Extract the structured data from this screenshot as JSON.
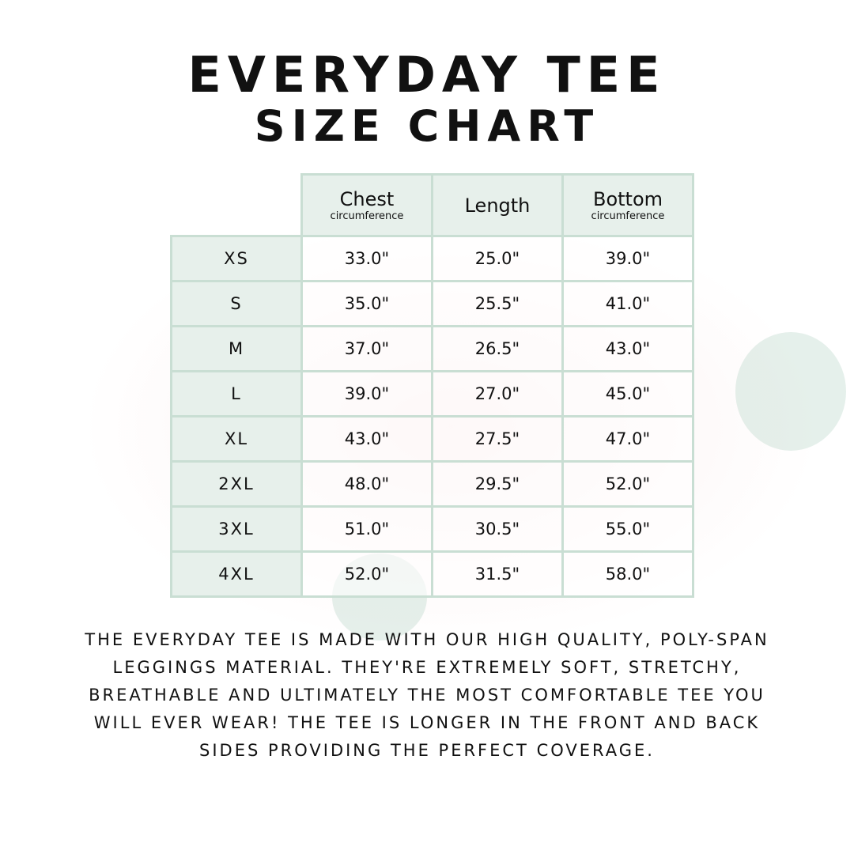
{
  "title": "EVERYDAY TEE",
  "subtitle": "SIZE CHART",
  "columns": [
    {
      "main": "Chest",
      "sub": "circumference"
    },
    {
      "main": "Length",
      "sub": ""
    },
    {
      "main": "Bottom",
      "sub": "circumference"
    }
  ],
  "rows": [
    {
      "size": "XS",
      "chest": "33.0\"",
      "length": "25.0\"",
      "bottom": "39.0\""
    },
    {
      "size": "S",
      "chest": "35.0\"",
      "length": "25.5\"",
      "bottom": "41.0\""
    },
    {
      "size": "M",
      "chest": "37.0\"",
      "length": "26.5\"",
      "bottom": "43.0\""
    },
    {
      "size": "L",
      "chest": "39.0\"",
      "length": "27.0\"",
      "bottom": "45.0\""
    },
    {
      "size": "XL",
      "chest": "43.0\"",
      "length": "27.5\"",
      "bottom": "47.0\""
    },
    {
      "size": "2XL",
      "chest": "48.0\"",
      "length": "29.5\"",
      "bottom": "52.0\""
    },
    {
      "size": "3XL",
      "chest": "51.0\"",
      "length": "30.5\"",
      "bottom": "55.0\""
    },
    {
      "size": "4XL",
      "chest": "52.0\"",
      "length": "31.5\"",
      "bottom": "58.0\""
    }
  ],
  "description": "The Everyday Tee is made with our high quality, poly-span leggings material. They're extremely soft, stretchy, breathable and ultimately the most comfortable tee you will ever wear! The tee is longer in the front and back sides providing the perfect coverage.",
  "colors": {
    "header_bg": "#e7f0eb",
    "border": "#c9ded3"
  }
}
